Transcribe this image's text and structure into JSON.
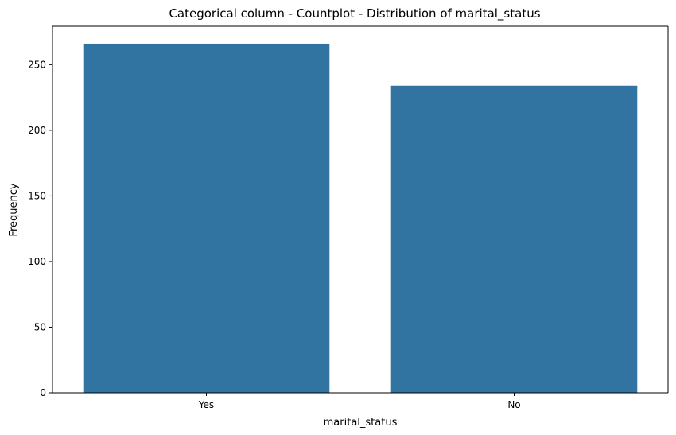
{
  "chart_data": {
    "type": "bar",
    "title": "Categorical column - Countplot - Distribution of marital_status",
    "xlabel": "marital_status",
    "ylabel": "Frequency",
    "categories": [
      "Yes",
      "No"
    ],
    "values": [
      266,
      234
    ],
    "ylim": [
      0,
      279.3
    ],
    "yticks": [
      0,
      50,
      100,
      150,
      200,
      250
    ],
    "grid": false,
    "bar_color": "#3274a1"
  }
}
